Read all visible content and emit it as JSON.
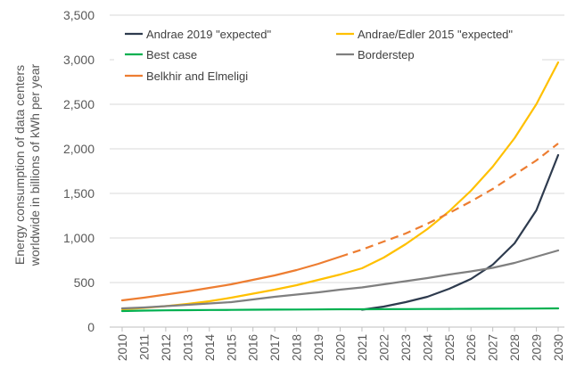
{
  "chart_data": {
    "type": "line",
    "title": "",
    "xlabel": "",
    "ylabel_lines": [
      "Energy consumption of data centers",
      "worldwide in billions of kWh per year"
    ],
    "ylim": [
      0,
      3500
    ],
    "yticks": [
      0,
      500,
      1000,
      1500,
      2000,
      2500,
      3000,
      3500
    ],
    "ytick_labels": [
      "0",
      "500",
      "1,000",
      "1,500",
      "2,000",
      "2,500",
      "3,000",
      "3,500"
    ],
    "categories": [
      "2010",
      "2011",
      "2012",
      "2013",
      "2014",
      "2015",
      "2016",
      "2017",
      "2018",
      "2019",
      "2020",
      "2021",
      "2022",
      "2023",
      "2024",
      "2025",
      "2026",
      "2027",
      "2028",
      "2029",
      "2030"
    ],
    "grid": true,
    "legend_position": "top",
    "series": [
      {
        "name": "Andrae 2019 \"expected\"",
        "color": "#2e3b4e",
        "dashed_from_year": null,
        "points": [
          {
            "x": 2021,
            "y": 195
          },
          {
            "x": 2022,
            "y": 230
          },
          {
            "x": 2023,
            "y": 280
          },
          {
            "x": 2024,
            "y": 340
          },
          {
            "x": 2025,
            "y": 430
          },
          {
            "x": 2026,
            "y": 540
          },
          {
            "x": 2027,
            "y": 700
          },
          {
            "x": 2028,
            "y": 940
          },
          {
            "x": 2029,
            "y": 1310
          },
          {
            "x": 2030,
            "y": 1930
          }
        ]
      },
      {
        "name": "Andrae/Edler 2015 \"expected\"",
        "color": "#ffc000",
        "dashed_from_year": null,
        "points": [
          {
            "x": 2010,
            "y": 200
          },
          {
            "x": 2011,
            "y": 215
          },
          {
            "x": 2012,
            "y": 235
          },
          {
            "x": 2013,
            "y": 260
          },
          {
            "x": 2014,
            "y": 290
          },
          {
            "x": 2015,
            "y": 330
          },
          {
            "x": 2016,
            "y": 375
          },
          {
            "x": 2017,
            "y": 420
          },
          {
            "x": 2018,
            "y": 470
          },
          {
            "x": 2019,
            "y": 530
          },
          {
            "x": 2020,
            "y": 590
          },
          {
            "x": 2021,
            "y": 660
          },
          {
            "x": 2022,
            "y": 780
          },
          {
            "x": 2023,
            "y": 930
          },
          {
            "x": 2024,
            "y": 1100
          },
          {
            "x": 2025,
            "y": 1300
          },
          {
            "x": 2026,
            "y": 1530
          },
          {
            "x": 2027,
            "y": 1800
          },
          {
            "x": 2028,
            "y": 2120
          },
          {
            "x": 2029,
            "y": 2500
          },
          {
            "x": 2030,
            "y": 2970
          }
        ]
      },
      {
        "name": "Best case",
        "color": "#00b050",
        "dashed_from_year": null,
        "points": [
          {
            "x": 2010,
            "y": 180
          },
          {
            "x": 2011,
            "y": 185
          },
          {
            "x": 2012,
            "y": 188
          },
          {
            "x": 2013,
            "y": 190
          },
          {
            "x": 2014,
            "y": 192
          },
          {
            "x": 2015,
            "y": 193
          },
          {
            "x": 2016,
            "y": 195
          },
          {
            "x": 2017,
            "y": 196
          },
          {
            "x": 2018,
            "y": 197
          },
          {
            "x": 2019,
            "y": 198
          },
          {
            "x": 2020,
            "y": 200
          },
          {
            "x": 2021,
            "y": 200
          },
          {
            "x": 2022,
            "y": 201
          },
          {
            "x": 2023,
            "y": 202
          },
          {
            "x": 2024,
            "y": 203
          },
          {
            "x": 2025,
            "y": 204
          },
          {
            "x": 2026,
            "y": 205
          },
          {
            "x": 2027,
            "y": 206
          },
          {
            "x": 2028,
            "y": 207
          },
          {
            "x": 2029,
            "y": 208
          },
          {
            "x": 2030,
            "y": 210
          }
        ]
      },
      {
        "name": "Borderstep",
        "color": "#7f7f7f",
        "dashed_from_year": null,
        "points": [
          {
            "x": 2010,
            "y": 210
          },
          {
            "x": 2011,
            "y": 220
          },
          {
            "x": 2012,
            "y": 235
          },
          {
            "x": 2013,
            "y": 250
          },
          {
            "x": 2014,
            "y": 265
          },
          {
            "x": 2015,
            "y": 280
          },
          {
            "x": 2016,
            "y": 310
          },
          {
            "x": 2017,
            "y": 340
          },
          {
            "x": 2018,
            "y": 365
          },
          {
            "x": 2019,
            "y": 390
          },
          {
            "x": 2020,
            "y": 420
          },
          {
            "x": 2021,
            "y": 445
          },
          {
            "x": 2022,
            "y": 480
          },
          {
            "x": 2023,
            "y": 515
          },
          {
            "x": 2024,
            "y": 550
          },
          {
            "x": 2025,
            "y": 590
          },
          {
            "x": 2026,
            "y": 625
          },
          {
            "x": 2027,
            "y": 665
          },
          {
            "x": 2028,
            "y": 720
          },
          {
            "x": 2029,
            "y": 790
          },
          {
            "x": 2030,
            "y": 860
          }
        ]
      },
      {
        "name": "Belkhir and Elmeligi",
        "color": "#ed7d31",
        "dashed_from_year": 2020,
        "points": [
          {
            "x": 2010,
            "y": 300
          },
          {
            "x": 2011,
            "y": 330
          },
          {
            "x": 2012,
            "y": 365
          },
          {
            "x": 2013,
            "y": 400
          },
          {
            "x": 2014,
            "y": 440
          },
          {
            "x": 2015,
            "y": 480
          },
          {
            "x": 2016,
            "y": 530
          },
          {
            "x": 2017,
            "y": 580
          },
          {
            "x": 2018,
            "y": 640
          },
          {
            "x": 2019,
            "y": 710
          },
          {
            "x": 2020,
            "y": 790
          },
          {
            "x": 2021,
            "y": 870
          },
          {
            "x": 2022,
            "y": 960
          },
          {
            "x": 2023,
            "y": 1050
          },
          {
            "x": 2024,
            "y": 1160
          },
          {
            "x": 2025,
            "y": 1280
          },
          {
            "x": 2026,
            "y": 1410
          },
          {
            "x": 2027,
            "y": 1550
          },
          {
            "x": 2028,
            "y": 1710
          },
          {
            "x": 2029,
            "y": 1870
          },
          {
            "x": 2030,
            "y": 2060
          }
        ]
      }
    ]
  }
}
